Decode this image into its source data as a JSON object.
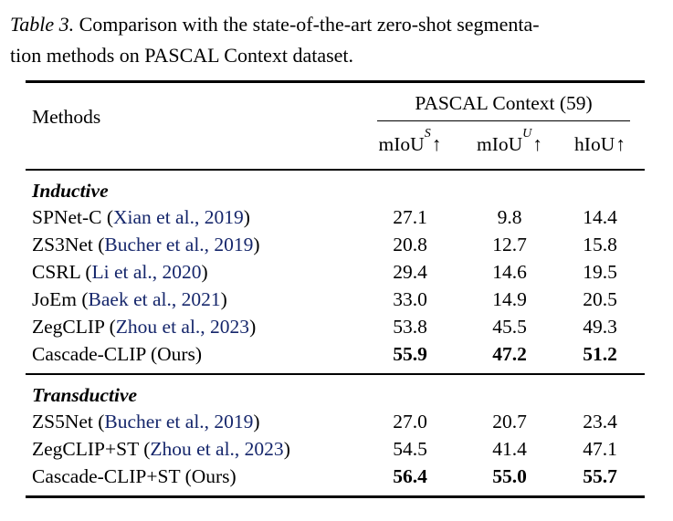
{
  "caption": {
    "label": "Table 3.",
    "line1_rest": " Comparison with the state-of-the-art zero-shot segmenta-",
    "line2": "tion methods on PASCAL Context dataset."
  },
  "table": {
    "methods_header": "Methods",
    "group_header": "PASCAL Context (59)",
    "columns": [
      {
        "base": "mIoU",
        "sup": "S",
        "arrow": "↑"
      },
      {
        "base": "mIoU",
        "sup": "U",
        "arrow": "↑"
      },
      {
        "base": "hIoU",
        "sup": "",
        "arrow": "↑"
      }
    ],
    "sections": [
      {
        "title": "Inductive",
        "rows": [
          {
            "pre": "SPNet-C (",
            "cite": "Xian et al., 2019",
            "post": ")",
            "values": [
              "27.1",
              "9.8",
              "14.4"
            ]
          },
          {
            "pre": "ZS3Net (",
            "cite": "Bucher et al., 2019",
            "post": ")",
            "values": [
              "20.8",
              "12.7",
              "15.8"
            ]
          },
          {
            "pre": "CSRL (",
            "cite": "Li et al., 2020",
            "post": ")",
            "values": [
              "29.4",
              "14.6",
              "19.5"
            ]
          },
          {
            "pre": "JoEm (",
            "cite": "Baek et al., 2021",
            "post": ")",
            "values": [
              "33.0",
              "14.9",
              "20.5"
            ]
          },
          {
            "pre": "ZegCLIP (",
            "cite": "Zhou et al., 2023",
            "post": ")",
            "values": [
              "53.8",
              "45.5",
              "49.3"
            ]
          },
          {
            "pre": "Cascade-CLIP (Ours)",
            "cite": "",
            "post": "",
            "values": [
              "55.9",
              "47.2",
              "51.2"
            ]
          }
        ]
      },
      {
        "title": "Transductive",
        "rows": [
          {
            "pre": "ZS5Net (",
            "cite": "Bucher et al., 2019",
            "post": ")",
            "values": [
              "27.0",
              "20.7",
              "23.4"
            ]
          },
          {
            "pre": "ZegCLIP+ST (",
            "cite": "Zhou et al., 2023",
            "post": ")",
            "values": [
              "54.5",
              "41.4",
              "47.1"
            ]
          },
          {
            "pre": "Cascade-CLIP+ST (Ours)",
            "cite": "",
            "post": "",
            "values": [
              "56.4",
              "55.0",
              "55.7"
            ]
          }
        ]
      }
    ]
  },
  "colors": {
    "citation_blue": "#15266b",
    "text_black": "#000000",
    "background": "#ffffff"
  }
}
